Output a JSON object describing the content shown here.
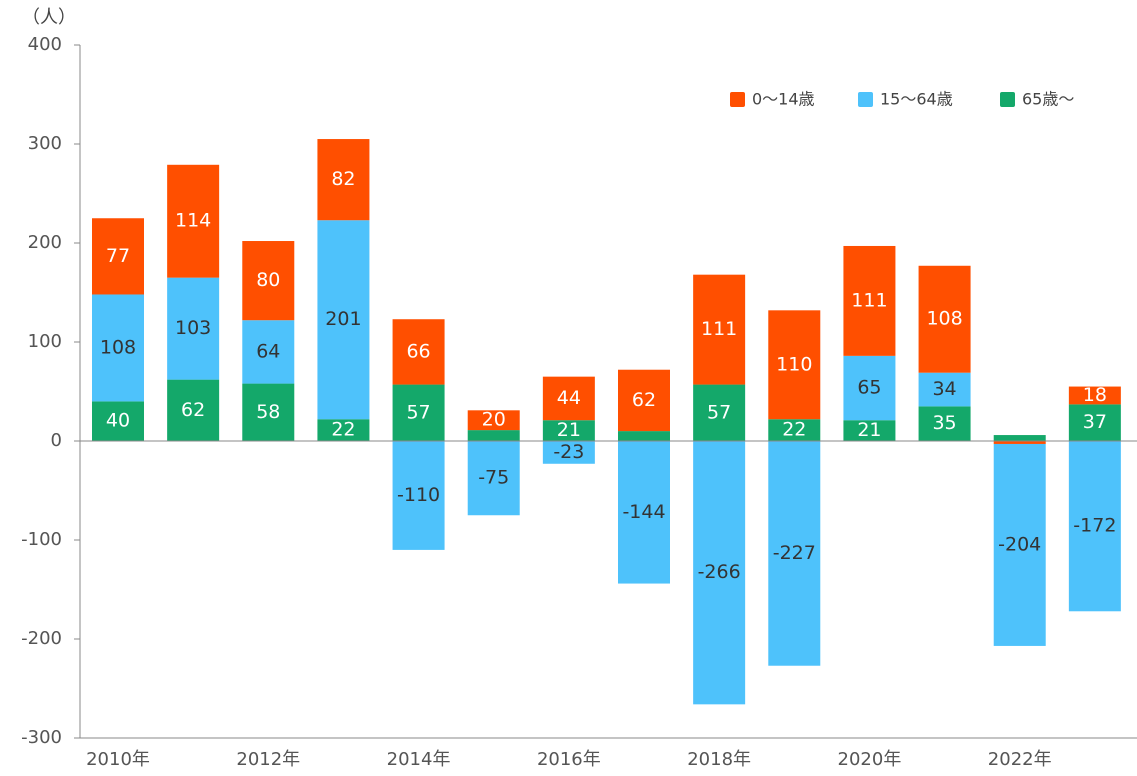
{
  "chart_data": {
    "type": "stacked-bar",
    "y_unit_label": "（人）",
    "categories": [
      "2010年",
      null,
      "2012年",
      null,
      "2014年",
      null,
      "2016年",
      null,
      "2018年",
      null,
      "2020年",
      null,
      "2022年",
      null
    ],
    "series": [
      {
        "name": "0〜14歳",
        "color": "#ff4f00",
        "label_color": "#ffffff",
        "values": [
          77,
          114,
          80,
          82,
          66,
          20,
          44,
          62,
          111,
          110,
          111,
          108,
          -3,
          18
        ]
      },
      {
        "name": "15〜64歳",
        "color": "#4ec2fb",
        "label_color": "#333333",
        "values": [
          108,
          103,
          64,
          201,
          -110,
          -75,
          -23,
          -144,
          -266,
          -227,
          65,
          34,
          -204,
          -172
        ]
      },
      {
        "name": "65歳〜",
        "color": "#14a86a",
        "label_color": "#ffffff",
        "values": [
          40,
          62,
          58,
          22,
          57,
          11,
          21,
          10,
          57,
          22,
          21,
          35,
          6,
          37
        ]
      }
    ],
    "ylim": [
      -300,
      400
    ],
    "yticks": [
      -300,
      -200,
      -100,
      0,
      100,
      200,
      300,
      400
    ],
    "legend": "top-right"
  }
}
